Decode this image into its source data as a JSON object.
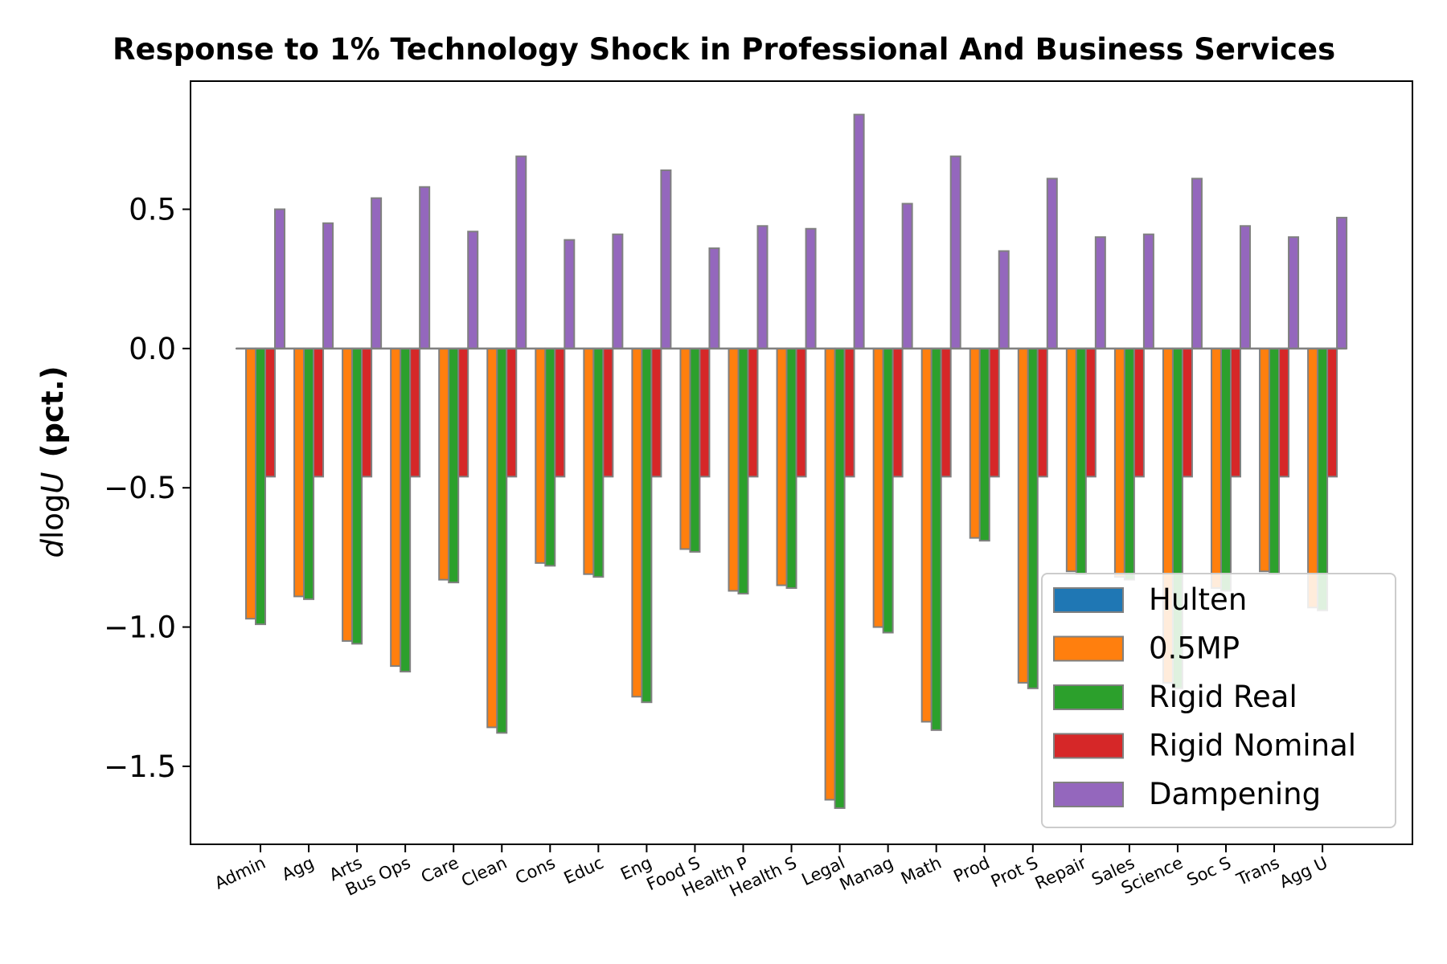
{
  "chart_data": {
    "type": "bar",
    "title": "Response to 1% Technology Shock in Professional And Business Services",
    "ylabel_math": "d log U",
    "ylabel_units": "(pct.)",
    "xlabel": "",
    "ylim": [
      -1.78,
      0.96
    ],
    "yticks": [
      0.5,
      0.0,
      -0.5,
      -1.0,
      -1.5
    ],
    "ytick_labels": [
      "0.5",
      "0.0",
      "−0.5",
      "−1.0",
      "−1.5"
    ],
    "categories": [
      "Admin",
      "Agg",
      "Arts",
      "Bus Ops",
      "Care",
      "Clean",
      "Cons",
      "Educ",
      "Eng",
      "Food S",
      "Health P",
      "Health S",
      "Legal",
      "Manag",
      "Math",
      "Prod",
      "Prot S",
      "Repair",
      "Sales",
      "Science",
      "Soc S",
      "Trans",
      "Agg U"
    ],
    "series": [
      {
        "name": "Hulten",
        "color": "#1f77b4",
        "values": [
          0,
          0,
          0,
          0,
          0,
          0,
          0,
          0,
          0,
          0,
          0,
          0,
          0,
          0,
          0,
          0,
          0,
          0,
          0,
          0,
          0,
          0,
          0
        ]
      },
      {
        "name": "0.5MP",
        "color": "#ff7f0e",
        "values": [
          -0.97,
          -0.89,
          -1.05,
          -1.14,
          -0.83,
          -1.36,
          -0.77,
          -0.81,
          -1.25,
          -0.72,
          -0.87,
          -0.85,
          -1.62,
          -1.0,
          -1.34,
          -0.68,
          -1.2,
          -0.8,
          -0.82,
          -1.2,
          -0.86,
          -0.8,
          -0.93
        ]
      },
      {
        "name": "Rigid Real",
        "color": "#2ca02c",
        "values": [
          -0.99,
          -0.9,
          -1.06,
          -1.16,
          -0.84,
          -1.38,
          -0.78,
          -0.82,
          -1.27,
          -0.73,
          -0.88,
          -0.86,
          -1.65,
          -1.02,
          -1.37,
          -0.69,
          -1.22,
          -0.81,
          -0.83,
          -1.22,
          -0.87,
          -0.81,
          -0.94
        ]
      },
      {
        "name": "Rigid Nominal",
        "color": "#d62728",
        "values": [
          -0.46,
          -0.46,
          -0.46,
          -0.46,
          -0.46,
          -0.46,
          -0.46,
          -0.46,
          -0.46,
          -0.46,
          -0.46,
          -0.46,
          -0.46,
          -0.46,
          -0.46,
          -0.46,
          -0.46,
          -0.46,
          -0.46,
          -0.46,
          -0.46,
          -0.46,
          -0.46
        ]
      },
      {
        "name": "Dampening",
        "color": "#9467bd",
        "values": [
          0.5,
          0.45,
          0.54,
          0.58,
          0.42,
          0.69,
          0.39,
          0.41,
          0.64,
          0.36,
          0.44,
          0.43,
          0.84,
          0.52,
          0.69,
          0.35,
          0.61,
          0.4,
          0.41,
          0.61,
          0.44,
          0.4,
          0.47
        ]
      }
    ],
    "legend": "lower-right",
    "grid": false
  }
}
